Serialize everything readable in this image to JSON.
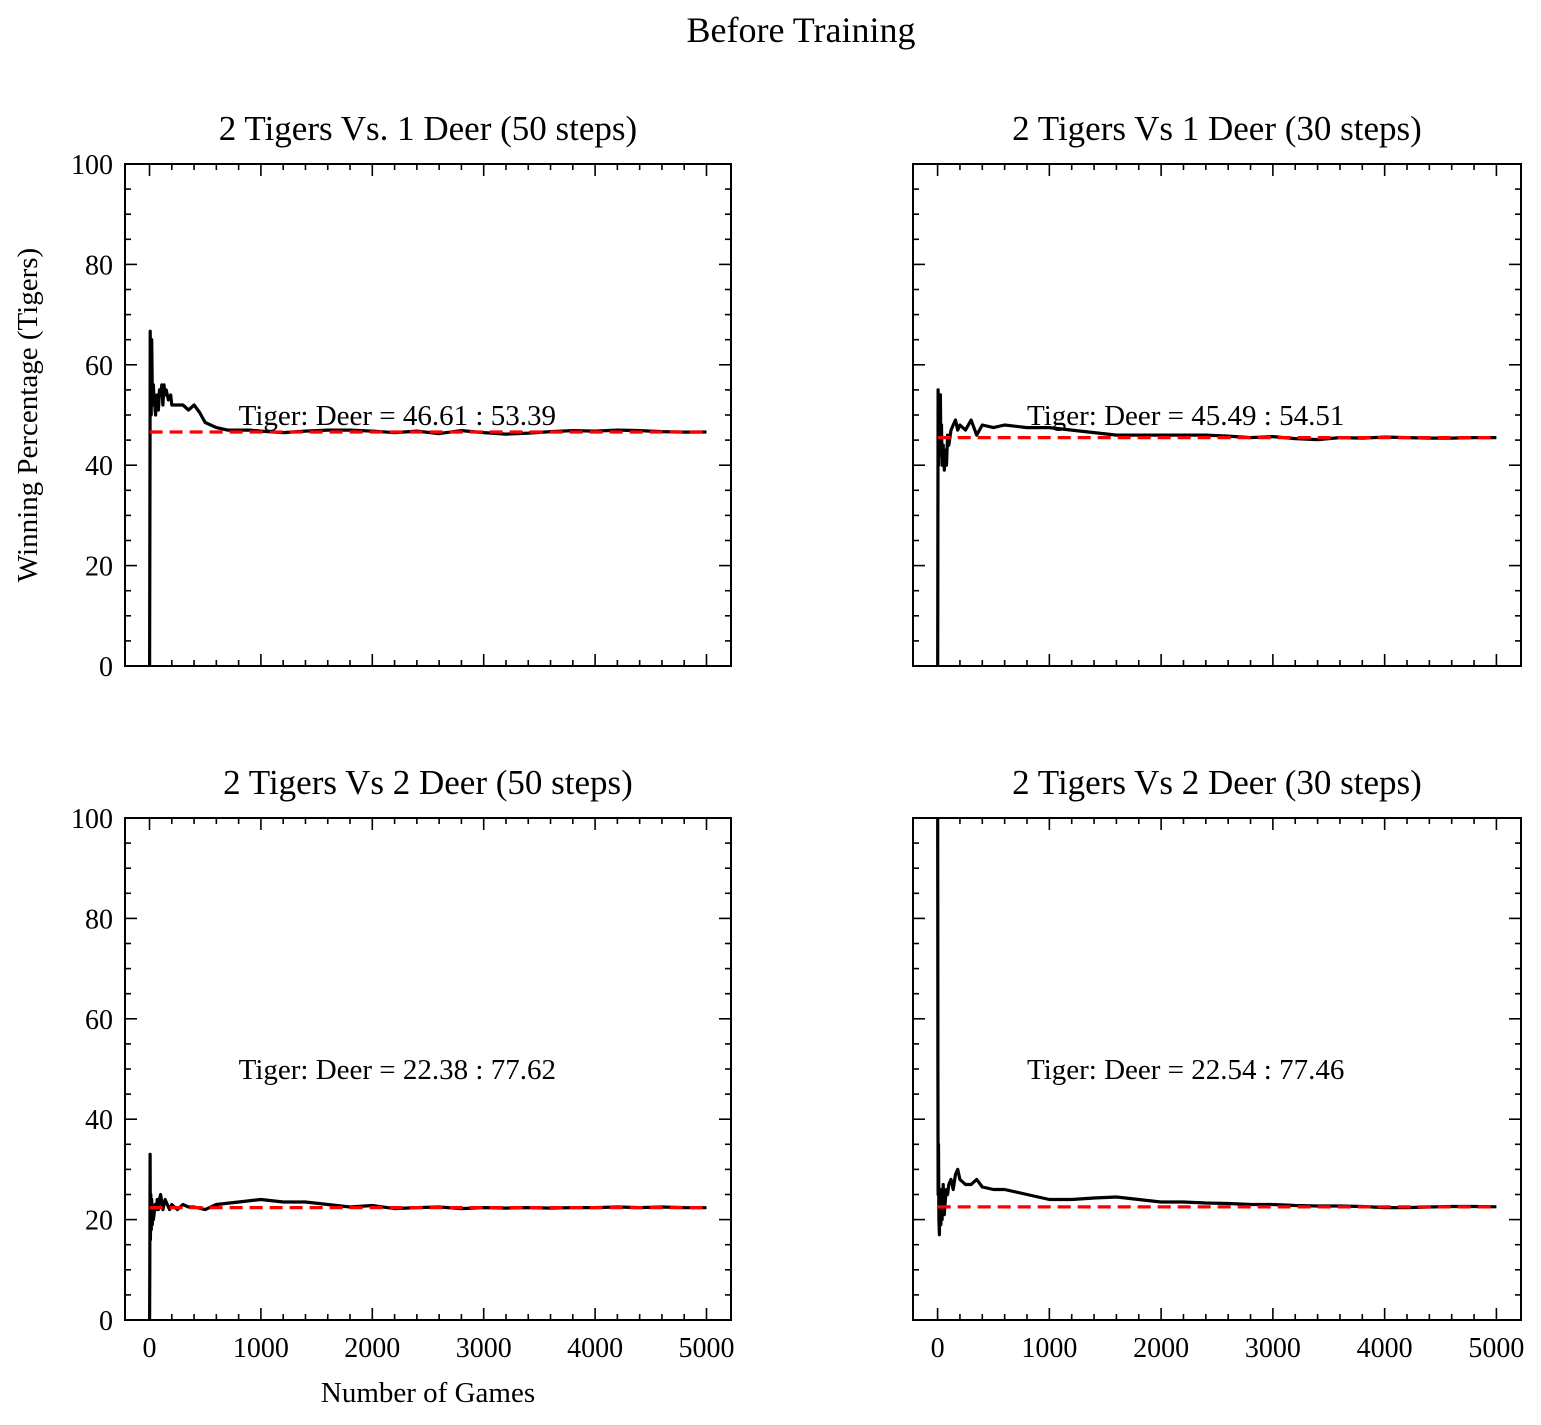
{
  "chart_data": {
    "suptitle": "Before Training",
    "ylabel": "Winning Percentage (Tigers)",
    "xlabel": "Number of Games",
    "xlim": [
      -220,
      5220
    ],
    "ylim": [
      0,
      100
    ],
    "xticks": [
      "0",
      "1000",
      "2000",
      "3000",
      "4000",
      "5000"
    ],
    "yticks": [
      "0",
      "20",
      "40",
      "60",
      "80",
      "100"
    ],
    "panels": [
      {
        "title": "2 Tigers Vs. 1 Deer (50 steps)",
        "type": "line",
        "annotation": "Tiger: Deer = 46.61 : 53.39",
        "mean": 46.61,
        "series": {
          "name": "Winning Percentage",
          "x": [
            1,
            4,
            6,
            9,
            12,
            15,
            20,
            25,
            30,
            35,
            40,
            45,
            50,
            55,
            60,
            70,
            80,
            90,
            100,
            110,
            120,
            130,
            140,
            150,
            170,
            190,
            200,
            220,
            250,
            300,
            350,
            400,
            450,
            500,
            600,
            700,
            800,
            900,
            1000,
            1200,
            1400,
            1600,
            1800,
            2000,
            2200,
            2400,
            2600,
            2800,
            3000,
            3200,
            3400,
            3600,
            3800,
            4000,
            4200,
            4400,
            4600,
            4800,
            5000
          ],
          "y": [
            0,
            40,
            66.7,
            57,
            60,
            50,
            65,
            55,
            52,
            56,
            53,
            54,
            51,
            50,
            53,
            54,
            51,
            55,
            54,
            56,
            52,
            56,
            54,
            55,
            53,
            54,
            52,
            52,
            52,
            52,
            51,
            52,
            50.5,
            48.5,
            47.5,
            47,
            47,
            47,
            46.8,
            46.5,
            46.8,
            47,
            47,
            46.8,
            46.5,
            46.8,
            46.3,
            46.9,
            46.5,
            46.2,
            46.4,
            46.7,
            46.9,
            46.8,
            47,
            46.9,
            46.7,
            46.6,
            46.61
          ]
        }
      },
      {
        "title": "2 Tigers Vs 1 Deer (30 steps)",
        "type": "line",
        "annotation": "Tiger: Deer = 45.49 : 54.51",
        "mean": 45.49,
        "series": {
          "name": "Winning Percentage",
          "x": [
            1,
            3,
            5,
            8,
            12,
            18,
            25,
            30,
            35,
            40,
            50,
            60,
            70,
            80,
            90,
            100,
            120,
            140,
            160,
            180,
            200,
            250,
            300,
            350,
            400,
            500,
            600,
            800,
            1000,
            1200,
            1400,
            1600,
            1800,
            2000,
            2200,
            2400,
            2600,
            2800,
            3000,
            3200,
            3400,
            3600,
            3800,
            4000,
            4200,
            4400,
            4600,
            4800,
            5000
          ],
          "y": [
            0,
            30,
            55,
            40,
            52,
            47,
            54,
            42,
            48,
            40,
            44,
            39,
            43,
            40,
            46,
            44,
            47,
            48,
            49,
            47,
            48,
            47,
            49,
            46,
            48,
            47.5,
            48,
            47.5,
            47.5,
            47,
            46.5,
            46,
            46,
            46,
            46,
            46,
            45.8,
            45.5,
            45.7,
            45.3,
            45.1,
            45.5,
            45.4,
            45.6,
            45.5,
            45.4,
            45.4,
            45.5,
            45.49
          ]
        }
      },
      {
        "title": "2 Tigers Vs 2 Deer (50 steps)",
        "type": "line",
        "annotation": "Tiger: Deer = 22.38 : 77.62",
        "mean": 22.38,
        "series": {
          "name": "Winning Percentage",
          "x": [
            1,
            3,
            5,
            8,
            12,
            16,
            20,
            25,
            30,
            35,
            40,
            50,
            60,
            70,
            80,
            90,
            100,
            120,
            140,
            160,
            180,
            200,
            250,
            300,
            350,
            400,
            500,
            600,
            800,
            1000,
            1200,
            1400,
            1600,
            1800,
            2000,
            2200,
            2400,
            2600,
            2800,
            3000,
            3200,
            3400,
            3600,
            3800,
            4000,
            4200,
            4400,
            4600,
            4800,
            5000
          ],
          "y": [
            0,
            10,
            33,
            16,
            25,
            18,
            24,
            19,
            22,
            20,
            21,
            23,
            22,
            24,
            22,
            24,
            25,
            22,
            24,
            23,
            22,
            23,
            22,
            23,
            22.5,
            22.5,
            22,
            23,
            23.5,
            24,
            23.5,
            23.5,
            23,
            22.5,
            22.8,
            22.2,
            22.4,
            22.5,
            22.2,
            22.4,
            22.3,
            22.4,
            22.3,
            22.4,
            22.4,
            22.5,
            22.4,
            22.5,
            22.4,
            22.38
          ]
        }
      },
      {
        "title": "2 Tigers Vs 2 Deer (30 steps)",
        "type": "line",
        "annotation": "Tiger: Deer = 22.54 : 77.46",
        "mean": 22.54,
        "series": {
          "name": "Winning Percentage",
          "x": [
            1,
            3,
            5,
            8,
            12,
            16,
            20,
            25,
            30,
            35,
            40,
            50,
            60,
            70,
            80,
            90,
            100,
            120,
            140,
            160,
            180,
            200,
            250,
            300,
            350,
            400,
            500,
            600,
            800,
            1000,
            1200,
            1400,
            1600,
            1800,
            2000,
            2200,
            2400,
            2600,
            2800,
            3000,
            3200,
            3400,
            3600,
            3800,
            4000,
            4200,
            4400,
            4600,
            4800,
            5000
          ],
          "y": [
            100,
            50,
            25,
            35,
            20,
            17,
            22,
            26,
            19,
            24,
            20,
            27,
            21,
            24,
            26,
            25,
            27,
            28,
            26,
            29,
            30,
            28,
            27,
            27,
            28,
            26.5,
            26,
            26,
            25,
            24,
            24,
            24.3,
            24.5,
            24,
            23.5,
            23.5,
            23.3,
            23.2,
            23,
            23,
            22.8,
            22.7,
            22.7,
            22.6,
            22.4,
            22.4,
            22.5,
            22.6,
            22.6,
            22.54
          ]
        }
      }
    ]
  }
}
